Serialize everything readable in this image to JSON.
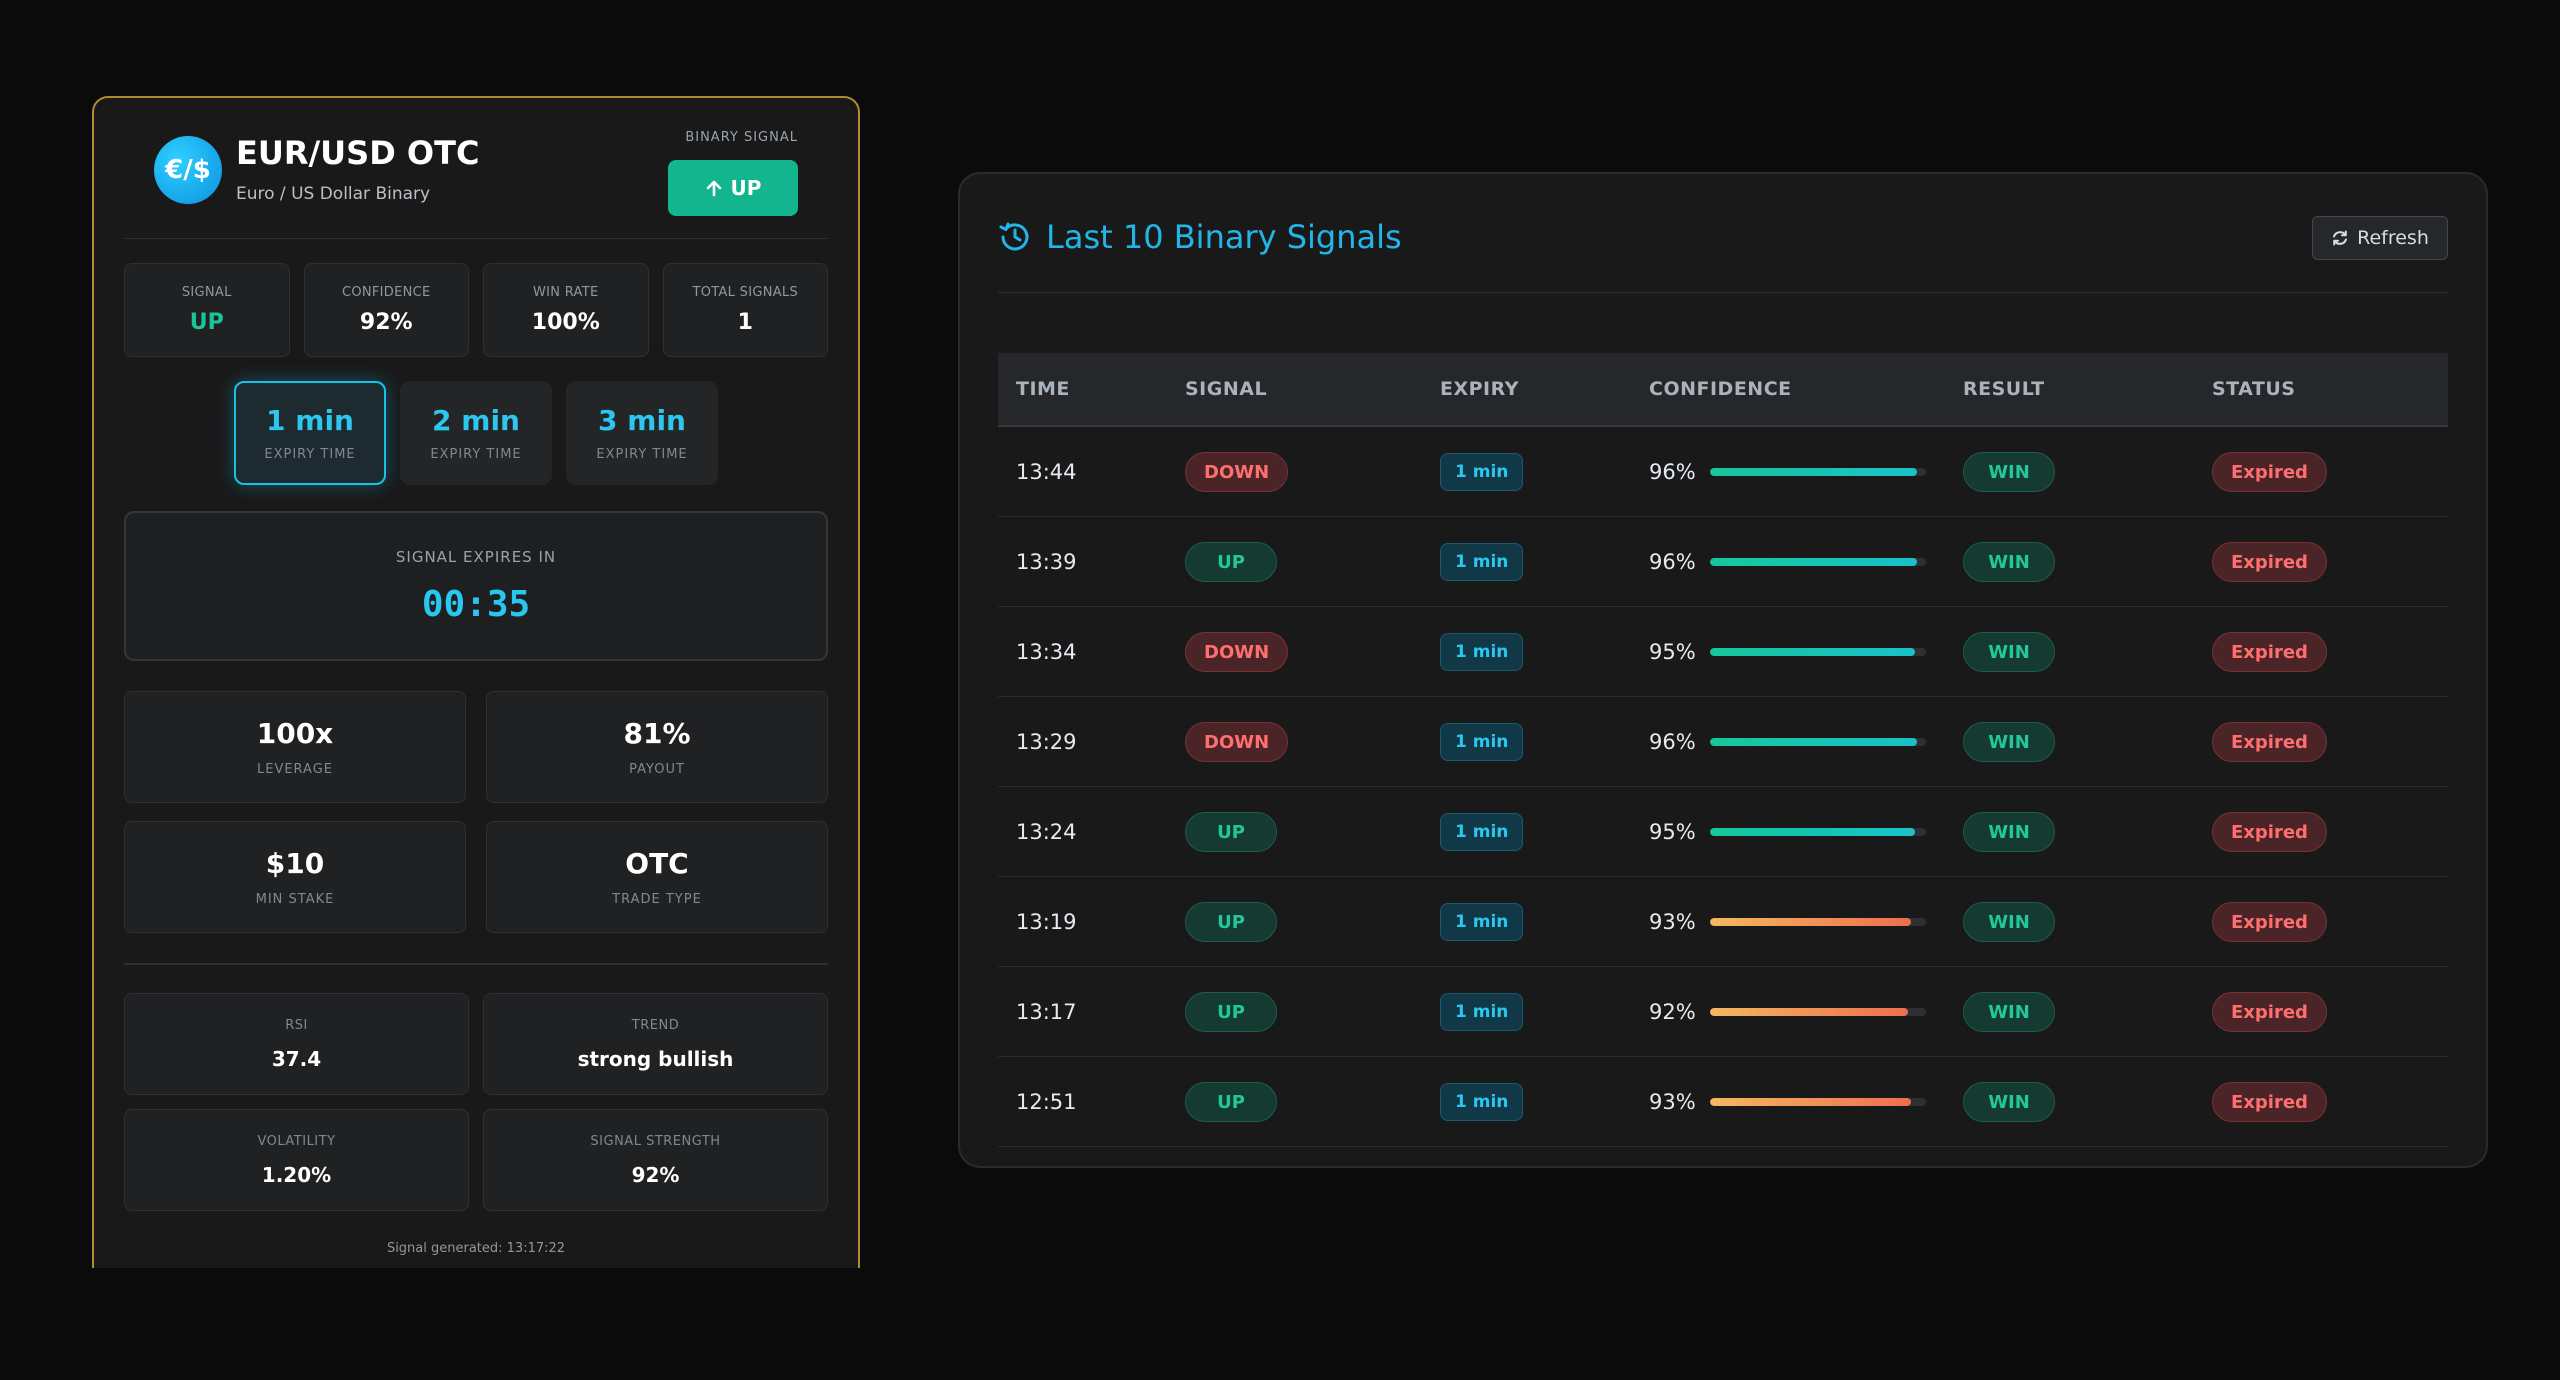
{
  "signal_card": {
    "pair_icon_text": "€/$",
    "pair": "EUR/USD OTC",
    "pair_desc": "Euro / US Dollar Binary",
    "binary_signal_label": "BINARY SIGNAL",
    "binary_signal_value": "UP",
    "stats": [
      {
        "label": "SIGNAL",
        "value": "UP"
      },
      {
        "label": "CONFIDENCE",
        "value": "92%"
      },
      {
        "label": "WIN RATE",
        "value": "100%"
      },
      {
        "label": "TOTAL SIGNALS",
        "value": "1"
      }
    ],
    "expiry_options": [
      {
        "time": "1 min",
        "sub": "EXPIRY TIME",
        "active": true
      },
      {
        "time": "2 min",
        "sub": "EXPIRY TIME",
        "active": false
      },
      {
        "time": "3 min",
        "sub": "EXPIRY TIME",
        "active": false
      }
    ],
    "countdown_label": "SIGNAL EXPIRES IN",
    "countdown": "00:35",
    "info": [
      {
        "value": "100x",
        "label": "LEVERAGE"
      },
      {
        "value": "81%",
        "label": "PAYOUT"
      },
      {
        "value": "$10",
        "label": "MIN STAKE"
      },
      {
        "value": "OTC",
        "label": "TRADE TYPE"
      }
    ],
    "technicals": [
      {
        "label": "RSI",
        "value": "37.4"
      },
      {
        "label": "TREND",
        "value": "strong bullish"
      },
      {
        "label": "VOLATILITY",
        "value": "1.20%"
      },
      {
        "label": "SIGNAL STRENGTH",
        "value": "92%"
      }
    ],
    "generated": "Signal generated: 13:17:22"
  },
  "signals_panel": {
    "title": "Last 10 Binary Signals",
    "refresh_label": "Refresh",
    "columns": [
      "TIME",
      "SIGNAL",
      "EXPIRY",
      "CONFIDENCE",
      "RESULT",
      "STATUS"
    ],
    "rows": [
      {
        "time": "13:44",
        "signal": "DOWN",
        "expiry": "1 min",
        "confidence": "96%",
        "confidence_value": 96,
        "result": "WIN",
        "status": "Expired"
      },
      {
        "time": "13:39",
        "signal": "UP",
        "expiry": "1 min",
        "confidence": "96%",
        "confidence_value": 96,
        "result": "WIN",
        "status": "Expired"
      },
      {
        "time": "13:34",
        "signal": "DOWN",
        "expiry": "1 min",
        "confidence": "95%",
        "confidence_value": 95,
        "result": "WIN",
        "status": "Expired"
      },
      {
        "time": "13:29",
        "signal": "DOWN",
        "expiry": "1 min",
        "confidence": "96%",
        "confidence_value": 96,
        "result": "WIN",
        "status": "Expired"
      },
      {
        "time": "13:24",
        "signal": "UP",
        "expiry": "1 min",
        "confidence": "95%",
        "confidence_value": 95,
        "result": "WIN",
        "status": "Expired"
      },
      {
        "time": "13:19",
        "signal": "UP",
        "expiry": "1 min",
        "confidence": "93%",
        "confidence_value": 93,
        "result": "WIN",
        "status": "Expired"
      },
      {
        "time": "13:17",
        "signal": "UP",
        "expiry": "1 min",
        "confidence": "92%",
        "confidence_value": 92,
        "result": "WIN",
        "status": "Expired"
      },
      {
        "time": "12:51",
        "signal": "UP",
        "expiry": "1 min",
        "confidence": "93%",
        "confidence_value": 93,
        "result": "WIN",
        "status": "Expired"
      }
    ]
  },
  "colors": {
    "accent_cyan": "#22b6e8",
    "up_green": "#18c69a",
    "down_red": "#ff6f6f",
    "card_border_gold": "#b08a2e",
    "bar_high": "#19c1c9",
    "bar_low_start": "#f4b860",
    "bar_low_end": "#ee6e4f"
  },
  "icons": {
    "history": "history-icon",
    "refresh": "refresh-icon",
    "arrow_up": "arrow-up-icon"
  }
}
